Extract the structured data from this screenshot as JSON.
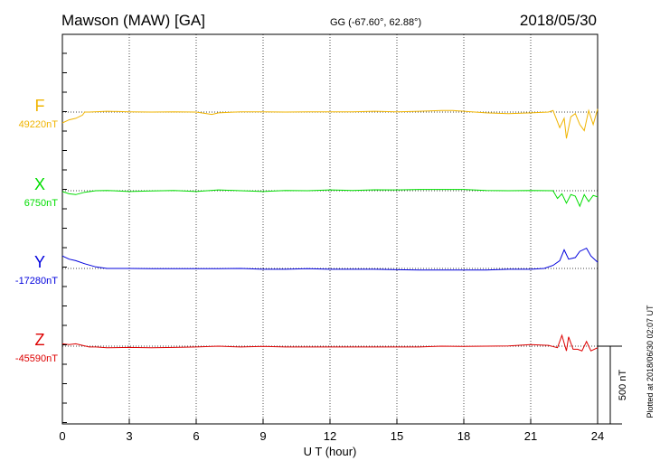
{
  "header": {
    "station": "Mawson (MAW)  [GA]",
    "coords": "GG (-67.60°,  62.88°)",
    "date": "2018/05/30"
  },
  "footer": {
    "plotted": "Plotted at 2018/06/30 02:07 UT"
  },
  "chart_data": {
    "type": "line",
    "xlabel": "U T (hour)",
    "xlim": [
      0,
      24
    ],
    "xticks": [
      0,
      3,
      6,
      9,
      12,
      15,
      18,
      21,
      24
    ],
    "scale_bar": "500 nT",
    "grid": "vertical dotted every 3 h",
    "colors": {
      "F": "#f0b400",
      "X": "#00dd00",
      "Y": "#0000dd",
      "Z": "#dd0000"
    },
    "series": [
      {
        "name": "F",
        "baseline_label": "49220nT",
        "baseline": 49220,
        "x": [
          0,
          0.3,
          0.6,
          0.9,
          1.0,
          1.2,
          2,
          3,
          4,
          5,
          6,
          6.7,
          7,
          8,
          9,
          10,
          11,
          12,
          13,
          14,
          15,
          16,
          17,
          17.5,
          18,
          19,
          20,
          21,
          21.8,
          22.0,
          22.3,
          22.5,
          22.6,
          22.8,
          23.0,
          23.2,
          23.4,
          23.6,
          23.8,
          24
        ],
        "y": [
          49150,
          49170,
          49180,
          49200,
          49220,
          49220,
          49225,
          49222,
          49220,
          49222,
          49220,
          49205,
          49215,
          49222,
          49222,
          49220,
          49222,
          49222,
          49222,
          49225,
          49222,
          49225,
          49230,
          49230,
          49225,
          49215,
          49210,
          49215,
          49220,
          49230,
          49120,
          49180,
          49050,
          49190,
          49210,
          49140,
          49100,
          49230,
          49140,
          49240
        ]
      },
      {
        "name": "X",
        "baseline_label": "6750nT",
        "baseline": 6750,
        "x": [
          0,
          0.3,
          0.6,
          1,
          1.5,
          2,
          3,
          4,
          5,
          6,
          7,
          8,
          9,
          10,
          11,
          12,
          13,
          14,
          15,
          16,
          17,
          18,
          19,
          20,
          21,
          22,
          22.2,
          22.4,
          22.6,
          22.8,
          23,
          23.2,
          23.4,
          23.6,
          23.8,
          24
        ],
        "y": [
          6745,
          6730,
          6725,
          6740,
          6750,
          6752,
          6745,
          6748,
          6752,
          6745,
          6755,
          6750,
          6745,
          6752,
          6750,
          6755,
          6752,
          6756,
          6755,
          6758,
          6758,
          6758,
          6752,
          6750,
          6752,
          6750,
          6700,
          6730,
          6670,
          6725,
          6715,
          6650,
          6725,
          6680,
          6720,
          6710
        ]
      },
      {
        "name": "Y",
        "baseline_label": "-17280nT",
        "baseline": -17280,
        "x": [
          0,
          0.3,
          0.6,
          1,
          1.5,
          2,
          3,
          4,
          5,
          6,
          7,
          8,
          9,
          10,
          11,
          12,
          13,
          14,
          15,
          16,
          17,
          18,
          19,
          20,
          21,
          21.6,
          22,
          22.3,
          22.5,
          22.7,
          23,
          23.2,
          23.5,
          23.7,
          24
        ],
        "y": [
          -17200,
          -17220,
          -17230,
          -17250,
          -17270,
          -17280,
          -17280,
          -17282,
          -17282,
          -17282,
          -17282,
          -17280,
          -17285,
          -17285,
          -17282,
          -17285,
          -17285,
          -17285,
          -17288,
          -17290,
          -17290,
          -17290,
          -17290,
          -17285,
          -17285,
          -17280,
          -17260,
          -17230,
          -17160,
          -17220,
          -17210,
          -17170,
          -17150,
          -17200,
          -17240
        ]
      },
      {
        "name": "Z",
        "baseline_label": "-45590nT",
        "baseline": -45590,
        "x": [
          0,
          0.3,
          0.6,
          0.9,
          1.2,
          1.5,
          2,
          3,
          4,
          5,
          6,
          7,
          8,
          9,
          10,
          11,
          12,
          13,
          14,
          15,
          16,
          17,
          18,
          19,
          20,
          21,
          21.8,
          22.2,
          22.4,
          22.6,
          22.7,
          22.9,
          23.1,
          23.3,
          23.5,
          23.7,
          24
        ],
        "y": [
          -45575,
          -45580,
          -45575,
          -45585,
          -45595,
          -45595,
          -45600,
          -45598,
          -45600,
          -45598,
          -45595,
          -45590,
          -45595,
          -45592,
          -45595,
          -45595,
          -45595,
          -45595,
          -45595,
          -45595,
          -45595,
          -45590,
          -45592,
          -45590,
          -45588,
          -45580,
          -45585,
          -45600,
          -45520,
          -45620,
          -45530,
          -45610,
          -45610,
          -45620,
          -45560,
          -45620,
          -45600
        ]
      }
    ]
  }
}
